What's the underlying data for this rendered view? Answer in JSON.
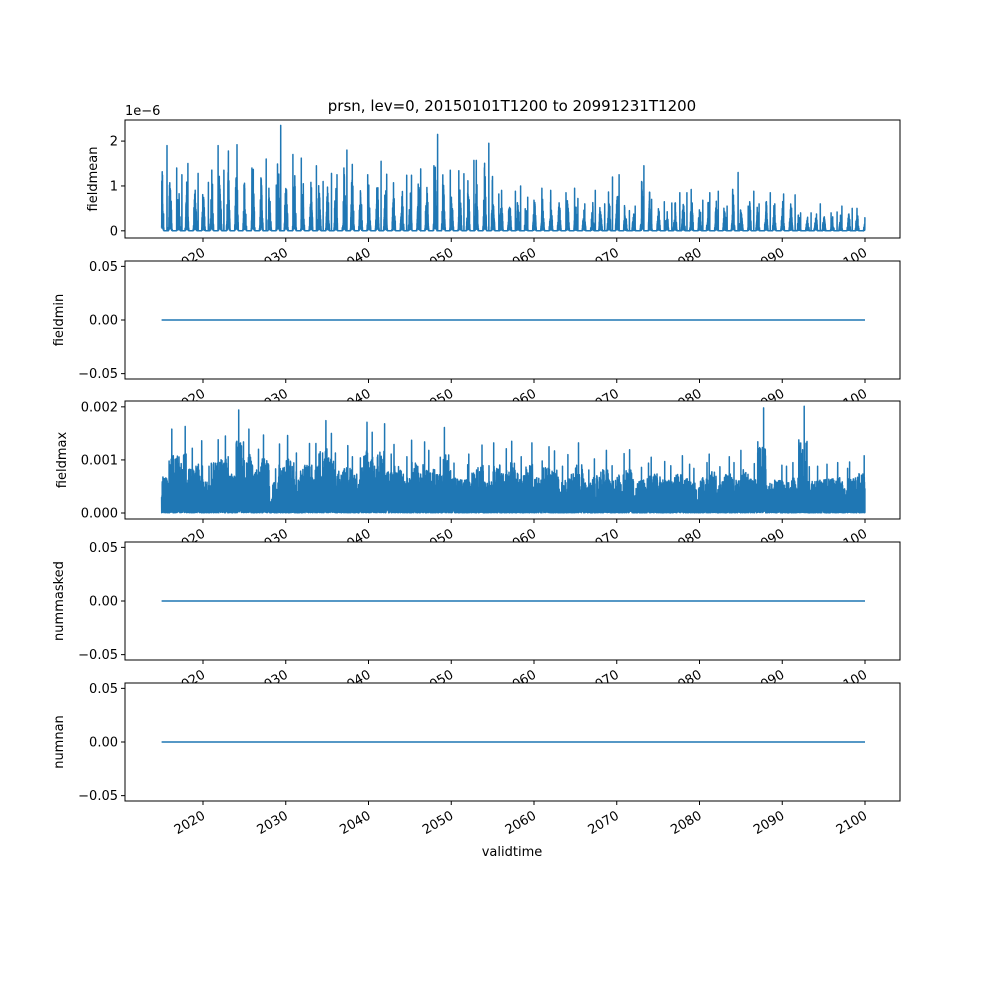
{
  "chart_data": {
    "type": "line",
    "title": "prsn, lev=0, 20150101T1200 to 20991231T1200",
    "xlabel": "validtime",
    "x_range": [
      2015,
      2100
    ],
    "x_ticks": [
      "2020",
      "2030",
      "2040",
      "2050",
      "2060",
      "2070",
      "2080",
      "2090",
      "2100"
    ],
    "line_color": "#1f77b4",
    "panels": [
      {
        "ylabel": "fieldmean",
        "offset_label": "1e−6",
        "ylim": [
          -0.16,
          2.47
        ],
        "y_ticks": [
          {
            "v": 0,
            "label": "0"
          },
          {
            "v": 1,
            "label": "1"
          },
          {
            "v": 2,
            "label": "2"
          }
        ],
        "annual_peak_years_start": 2015,
        "annual_peaks": [
          1.9,
          1.4,
          1.25,
          1.5,
          1.28,
          1.08,
          1.9,
          1.35,
          1.78,
          1.92,
          1.4,
          1.37,
          1.6,
          1.02,
          2.35,
          1.7,
          1.62,
          1.05,
          1.45,
          1.1,
          1.28,
          1.25,
          1.8,
          1.48,
          1.25,
          1.02,
          1.55,
          1.26,
          1.07,
          1.24,
          1.24,
          1.38,
          1.45,
          2.15,
          1.35,
          1.34,
          1.27,
          1.57,
          1.57,
          1.95,
          0.82,
          0.9,
          0.88,
          1.0,
          0.75,
          0.95,
          0.7,
          0.9,
          0.85,
          0.95,
          0.72,
          0.6,
          0.9,
          0.6,
          1.2,
          1.25,
          0.45,
          0.55,
          1.45,
          0.7,
          0.65,
          0.62,
          0.85,
          0.85,
          0.92,
          0.68,
          0.85,
          0.88,
          0.55,
          1.3,
          0.55,
          0.88,
          0.6,
          0.85,
          0.6,
          0.82,
          0.8,
          0.4,
          0.4,
          0.6,
          0.4,
          0.42,
          0.55,
          0.5,
          0.5
        ],
        "series_kind": "seasonal"
      },
      {
        "ylabel": "fieldmin",
        "ylim": [
          -0.055,
          0.055
        ],
        "y_ticks": [
          {
            "v": 0.05,
            "label": "0.05"
          },
          {
            "v": 0,
            "label": "0.00"
          },
          {
            "v": -0.05,
            "label": "−0.05"
          }
        ],
        "constant": 0
      },
      {
        "ylabel": "fieldmax",
        "ylim": [
          -0.000113,
          0.00211
        ],
        "y_ticks": [
          {
            "v": 0,
            "label": "0.000"
          },
          {
            "v": 0.001,
            "label": "0.001"
          },
          {
            "v": 0.002,
            "label": "0.002"
          }
        ],
        "annual_peak_years_start": 2015,
        "annual_peaks": [
          0.00098,
          0.00158,
          0.00163,
          0.00122,
          0.00136,
          0.00088,
          0.00138,
          0.00145,
          0.00106,
          0.00194,
          0.00158,
          0.0012,
          0.00147,
          0.00083,
          0.0013,
          0.00146,
          0.00113,
          0.00131,
          0.00131,
          0.00174,
          0.0015,
          0.00113,
          0.00127,
          0.00106,
          0.00171,
          0.00152,
          0.00168,
          0.00111,
          0.00129,
          0.00106,
          0.00137,
          0.00134,
          0.00118,
          0.00105,
          0.00161,
          0.00094,
          0.00091,
          0.00111,
          0.00128,
          0.00089,
          0.00132,
          0.00121,
          0.00135,
          0.00106,
          0.00132,
          0.00098,
          0.00125,
          0.00117,
          0.00088,
          0.0011,
          0.00132,
          0.00081,
          0.00102,
          0.00118,
          0.00089,
          0.00112,
          0.00119,
          0.00086,
          0.00094,
          0.00105,
          0.00097,
          0.00089,
          0.00108,
          0.00092,
          0.00084,
          0.00095,
          0.00111,
          0.00087,
          0.00106,
          0.00095,
          0.00118,
          0.00093,
          0.00198,
          0.00082,
          0.0009,
          0.00088,
          0.00095,
          0.00201,
          0.00087,
          0.00088,
          0.00092,
          0.00095,
          0.00084,
          0.00096,
          0.00108
        ],
        "series_kind": "spiky"
      },
      {
        "ylabel": "nummasked",
        "ylim": [
          -0.055,
          0.055
        ],
        "y_ticks": [
          {
            "v": 0.05,
            "label": "0.05"
          },
          {
            "v": 0,
            "label": "0.00"
          },
          {
            "v": -0.05,
            "label": "−0.05"
          }
        ],
        "constant": 0
      },
      {
        "ylabel": "numnan",
        "ylim": [
          -0.055,
          0.055
        ],
        "y_ticks": [
          {
            "v": 0.05,
            "label": "0.05"
          },
          {
            "v": 0,
            "label": "0.00"
          },
          {
            "v": -0.05,
            "label": "−0.05"
          }
        ],
        "constant": 0
      }
    ]
  }
}
